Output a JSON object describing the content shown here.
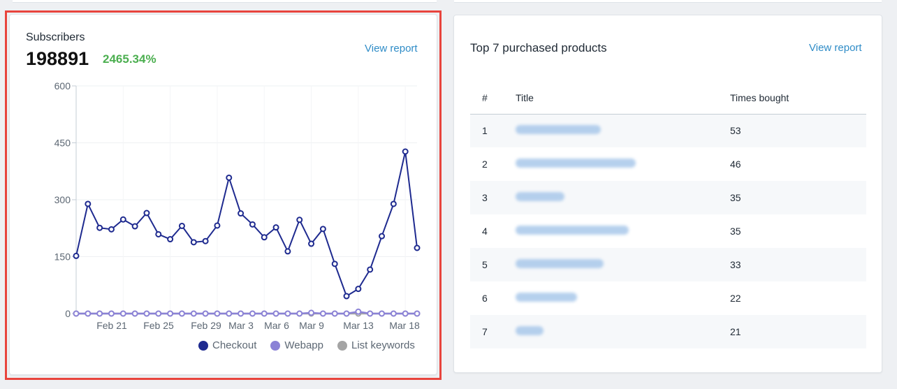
{
  "subscribers": {
    "title": "Subscribers",
    "value": "198891",
    "change": "2465.34%",
    "view_report": "View report"
  },
  "chart_data": {
    "type": "line",
    "x_tick_labels": [
      "Feb 21",
      "Feb 25",
      "Feb 29",
      "Mar 3",
      "Mar 6",
      "Mar 9",
      "Mar 13",
      "Mar 18"
    ],
    "y_ticks": [
      0,
      150,
      300,
      450,
      600
    ],
    "ylim": [
      0,
      600
    ],
    "legend_position": "bottom-right",
    "series": [
      {
        "name": "Checkout",
        "color": "#1e2a8f",
        "values": [
          152,
          289,
          226,
          222,
          248,
          230,
          265,
          209,
          196,
          231,
          188,
          191,
          232,
          358,
          264,
          235,
          201,
          227,
          164,
          247,
          184,
          223,
          131,
          46,
          65,
          116,
          204,
          289,
          427,
          173
        ]
      },
      {
        "name": "Webapp",
        "color": "#8b82d6",
        "values": [
          0,
          0,
          0,
          0,
          0,
          0,
          0,
          0,
          0,
          0,
          0,
          0,
          0,
          0,
          0,
          0,
          0,
          0,
          0,
          0,
          2,
          0,
          0,
          0,
          5,
          0,
          0,
          0,
          0,
          0
        ]
      },
      {
        "name": "List keywords",
        "color": "#a4a4a4",
        "values": [
          0,
          0,
          0,
          0,
          0,
          0,
          0,
          0,
          0,
          0,
          0,
          0,
          0,
          0,
          0,
          0,
          0,
          0,
          0,
          0,
          0,
          0,
          0,
          0,
          0,
          0,
          0,
          0,
          0,
          0
        ]
      }
    ]
  },
  "products": {
    "title": "Top 7 purchased products",
    "view_report": "View report",
    "columns": [
      "#",
      "Title",
      "Times bought"
    ],
    "rows": [
      {
        "rank": "1",
        "times": "53"
      },
      {
        "rank": "2",
        "times": "46"
      },
      {
        "rank": "3",
        "times": "35"
      },
      {
        "rank": "4",
        "times": "35"
      },
      {
        "rank": "5",
        "times": "33"
      },
      {
        "rank": "6",
        "times": "22"
      },
      {
        "rank": "7",
        "times": "21"
      }
    ]
  }
}
